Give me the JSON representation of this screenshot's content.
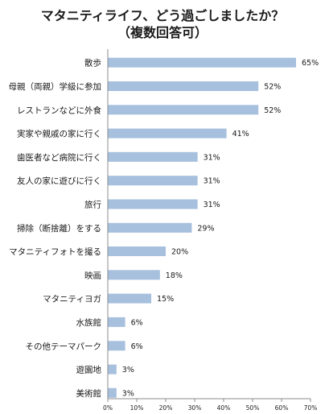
{
  "chart_data": {
    "type": "bar",
    "orientation": "horizontal",
    "title_lines": [
      "マタニティライフ、どう過ごしましたか？",
      "（複数回答可）"
    ],
    "categories": [
      "散歩",
      "母親（両親）学級に参加",
      "レストランなどに外食",
      "実家や親戚の家に行く",
      "歯医者など病院に行く",
      "友人の家に遊びに行く",
      "旅行",
      "掃除（断捨離）をする",
      "マタニティフォトを撮る",
      "映画",
      "マタニティヨガ",
      "水族館",
      "その他テーマパーク",
      "遊園地",
      "美術館"
    ],
    "values": [
      65,
      52,
      52,
      41,
      31,
      31,
      31,
      29,
      20,
      18,
      15,
      6,
      6,
      3,
      3
    ],
    "value_labels": [
      "65%",
      "52%",
      "52%",
      "41%",
      "31%",
      "31%",
      "31%",
      "29%",
      "20%",
      "18%",
      "15%",
      "6%",
      "6%",
      "3%",
      "3%"
    ],
    "x_ticks": [
      0,
      10,
      20,
      30,
      40,
      50,
      60,
      70
    ],
    "x_tick_labels": [
      "0%",
      "10%",
      "20%",
      "30%",
      "40%",
      "50%",
      "60%",
      "70%"
    ],
    "xlim": [
      0,
      70
    ],
    "bar_color": "#a7c0de",
    "grid": false,
    "legend": "none"
  }
}
